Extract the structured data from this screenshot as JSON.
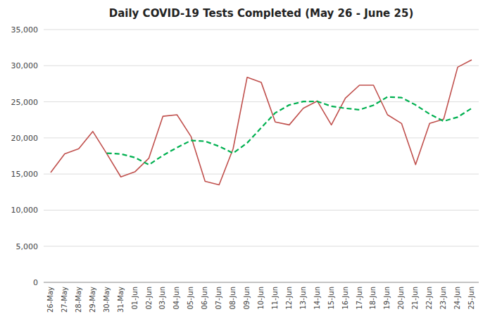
{
  "chart_data": {
    "type": "line",
    "title": "Daily COVID-19 Tests Completed (May 26 - June 25)",
    "categories": [
      "26-May",
      "27-May",
      "28-May",
      "29-May",
      "30-May",
      "31-May",
      "01-Jun",
      "02-Jun",
      "03-Jun",
      "04-Jun",
      "05-Jun",
      "06-Jun",
      "07-Jun",
      "08-Jun",
      "09-Jun",
      "10-Jun",
      "11-Jun",
      "12-Jun",
      "13-Jun",
      "14-Jun",
      "15-Jun",
      "16-Jun",
      "17-Jun",
      "18-Jun",
      "19-Jun",
      "20-Jun",
      "21-Jun",
      "22-Jun",
      "23-Jun",
      "24-Jun",
      "25-Jun"
    ],
    "series": [
      {
        "color": "#c0504d",
        "line_style": "solid",
        "values": [
          15200,
          17800,
          18500,
          20900,
          17800,
          14600,
          15300,
          17200,
          23000,
          23200,
          20200,
          14000,
          13500,
          18500,
          28400,
          27700,
          22200,
          21800,
          24100,
          25100,
          21800,
          25500,
          27300,
          27300,
          23200,
          22000,
          16300,
          22000,
          22600,
          29800,
          30800
        ]
      },
      {
        "color": "#00b050",
        "line_style": "dashed",
        "values": [
          null,
          null,
          null,
          null,
          17880,
          17780,
          17280,
          16280,
          17580,
          18660,
          19640,
          19540,
          18840,
          17880,
          19300,
          21400,
          23460,
          24560,
          25040,
          25060,
          24380,
          24100,
          23900,
          24520,
          25680,
          25580,
          24560,
          23300,
          22320,
          22880,
          24100
        ]
      }
    ],
    "ylim": [
      0,
      35000
    ],
    "yticks": [
      0,
      {
        "value": 5000,
        "label": "5,000"
      },
      {
        "value": 10000,
        "label": "10,000"
      },
      {
        "value": 15000,
        "label": "15,000"
      },
      {
        "value": 20000,
        "label": "20,000"
      },
      {
        "value": 25000,
        "label": "25,000"
      },
      {
        "value": 30000,
        "label": "30,000"
      },
      {
        "value": 35000,
        "label": "35,000"
      }
    ],
    "grid": true
  }
}
